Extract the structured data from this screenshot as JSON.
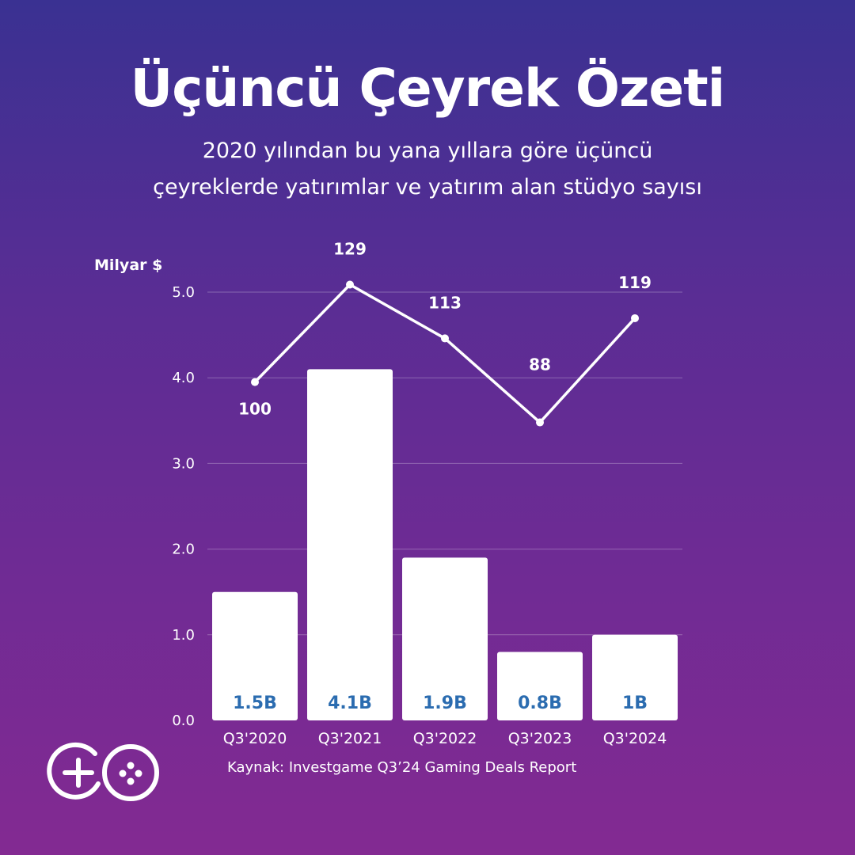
{
  "header": {
    "title": "Üçüncü Çeyrek Özeti",
    "subtitle_line1": "2020 yılından bu yana yıllara göre üçüncü",
    "subtitle_line2": "çeyreklerde yatırımlar ve yatırım alan stüdyo sayısı"
  },
  "source": "Kaynak: Investgame Q3’24 Gaming Deals Report",
  "logo": {
    "icon": "game-controller-go-logo-icon"
  },
  "colors": {
    "background_top": "#3a3192",
    "background_bottom": "#832a92",
    "bar": "#ffffff",
    "bar_label": "#2b6cb0",
    "line": "#ffffff"
  },
  "chart_data": {
    "type": "bar",
    "ylabel": "Milyar $",
    "ylim": [
      0,
      5
    ],
    "yticks": [
      "0.0",
      "1.0",
      "2.0",
      "3.0",
      "4.0",
      "5.0"
    ],
    "grid": true,
    "categories": [
      "Q3'2020",
      "Q3'2021",
      "Q3'2022",
      "Q3'2023",
      "Q3'2024"
    ],
    "series": [
      {
        "type": "bar",
        "values": [
          1.5,
          4.1,
          1.9,
          0.8,
          1.0
        ],
        "labels": [
          "1.5B",
          "4.1B",
          "1.9B",
          "0.8B",
          "1B"
        ]
      },
      {
        "type": "line",
        "values": [
          100,
          129,
          113,
          88,
          119
        ],
        "labels": [
          "100",
          "129",
          "113",
          "88",
          "119"
        ]
      }
    ]
  }
}
